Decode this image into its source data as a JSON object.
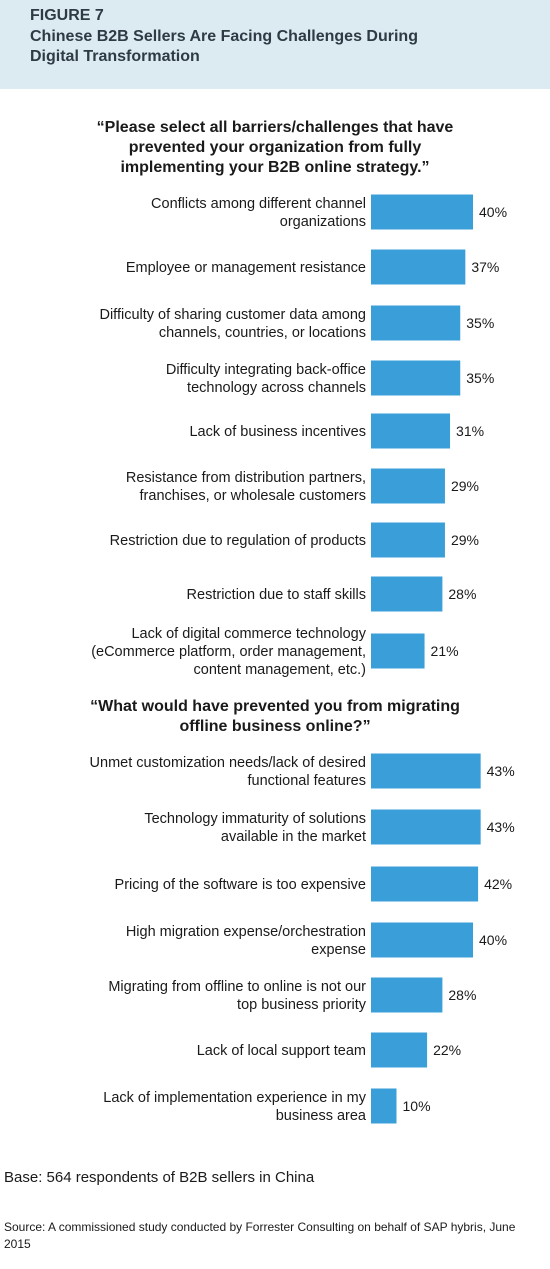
{
  "header": {
    "figure_label": "FIGURE 7",
    "title": "Chinese B2B Sellers Are Facing Challenges During\nDigital Transformation"
  },
  "chart_data": [
    {
      "type": "bar",
      "title": "“Please select all barriers/challenges that have\nprevented your organization from fully\nimplementing your B2B online strategy.”",
      "categories": [
        [
          "Conflicts among different channel",
          "organizations"
        ],
        [
          "Employee or management resistance"
        ],
        [
          "Difficulty of sharing customer data among",
          "channels, countries, or locations"
        ],
        [
          "Difficulty integrating back-office",
          "technology across channels"
        ],
        [
          "Lack of business incentives"
        ],
        [
          "Resistance from distribution partners,",
          "franchises, or wholesale customers"
        ],
        [
          "Restriction due to regulation of products"
        ],
        [
          "Restriction due to staff skills"
        ],
        [
          "Lack of digital commerce technology",
          "(eCommerce platform, order management,",
          "content management, etc.)"
        ]
      ],
      "values": [
        40,
        37,
        35,
        35,
        31,
        29,
        29,
        28,
        21
      ],
      "value_labels": [
        "40%",
        "37%",
        "35%",
        "35%",
        "31%",
        "29%",
        "29%",
        "28%",
        "21%"
      ],
      "unit": "%"
    },
    {
      "type": "bar",
      "title": "“What would have prevented you from migrating\noffline business online?”",
      "categories": [
        [
          "Unmet customization needs/lack of desired",
          "functional features"
        ],
        [
          "Technology immaturity of solutions",
          "available in the market"
        ],
        [
          "Pricing of the software is too expensive"
        ],
        [
          "High migration expense/orchestration",
          "expense"
        ],
        [
          "Migrating from offline to online is not our",
          "top business priority"
        ],
        [
          "Lack of local support team"
        ],
        [
          "Lack of implementation experience in my",
          "business area"
        ]
      ],
      "values": [
        43,
        43,
        42,
        40,
        28,
        22,
        10
      ],
      "value_labels": [
        "43%",
        "43%",
        "42%",
        "40%",
        "28%",
        "22%",
        "10%"
      ],
      "unit": "%"
    }
  ],
  "footer": {
    "base": "Base: 564 respondents of B2B sellers in China",
    "source": "Source: A commissioned study conducted by Forrester Consulting on behalf of SAP hybris, June 2015"
  },
  "colors": {
    "bar": "#3a9fd8",
    "header_bg": "#dcebf1"
  }
}
